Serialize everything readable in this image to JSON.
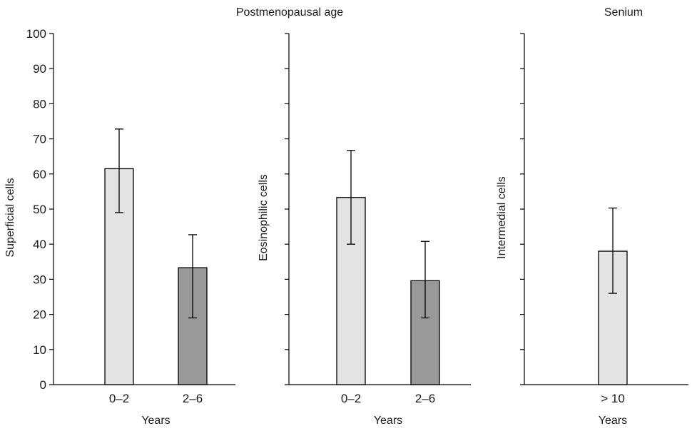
{
  "chart_data": [
    {
      "type": "bar",
      "title": "",
      "xlabel": "Years",
      "ylabel": "Superficial cells",
      "ylim": [
        0,
        100
      ],
      "yticks": [
        0,
        10,
        20,
        30,
        40,
        50,
        60,
        70,
        80,
        90,
        100
      ],
      "show_tick_labels": true,
      "categories": [
        "0–2",
        "2–6"
      ],
      "values": [
        61.5,
        33.3
      ],
      "error_low": [
        49.0,
        19.0
      ],
      "error_high": [
        72.8,
        42.7
      ],
      "bar_colors": [
        "#e3e3e3",
        "#999999"
      ]
    },
    {
      "type": "bar",
      "title": "Postmenopausal age",
      "xlabel": "Years",
      "ylabel": "Eosinophilic cells",
      "ylim": [
        0,
        100
      ],
      "yticks": [
        0,
        10,
        20,
        30,
        40,
        50,
        60,
        70,
        80,
        90,
        100
      ],
      "show_tick_labels": false,
      "categories": [
        "0–2",
        "2–6"
      ],
      "values": [
        53.3,
        29.6
      ],
      "error_low": [
        40.0,
        19.0
      ],
      "error_high": [
        66.7,
        40.8
      ],
      "bar_colors": [
        "#e3e3e3",
        "#999999"
      ]
    },
    {
      "type": "bar",
      "title": "Senium",
      "xlabel": "Years",
      "ylabel": "Intermedial cells",
      "ylim": [
        0,
        100
      ],
      "yticks": [
        0,
        10,
        20,
        30,
        40,
        50,
        60,
        70,
        80,
        90,
        100
      ],
      "show_tick_labels": false,
      "categories": [
        "> 10"
      ],
      "values": [
        38.0
      ],
      "error_low": [
        26.0
      ],
      "error_high": [
        50.3
      ],
      "bar_colors": [
        "#e3e3e3"
      ]
    }
  ]
}
